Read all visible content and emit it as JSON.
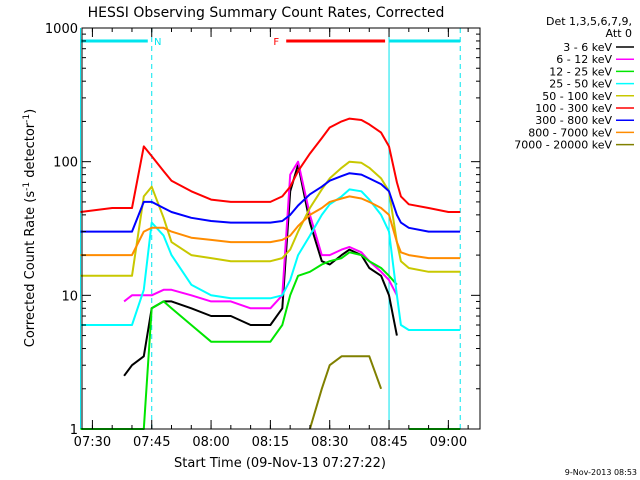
{
  "chart_data": {
    "type": "line",
    "title": "HESSI Observing Summary Count Rates, Corrected",
    "xlabel": "Start Time (09-Nov-13 07:27:22)",
    "ylabel": "Corrected Count Rate (s",
    "ylabel_sup1": "-1",
    "ylabel_mid": " detector",
    "ylabel_sup2": "-1",
    "ylabel_end": ")",
    "y_scale": "log",
    "ylim": [
      1,
      1000
    ],
    "xlim": [
      "07:27:22",
      "09:08:00"
    ],
    "x_ticks": [
      "07:30",
      "07:45",
      "08:00",
      "08:15",
      "08:30",
      "08:45",
      "09:00"
    ],
    "y_ticks": [
      {
        "value": 1,
        "label": "1"
      },
      {
        "value": 10,
        "label": "10"
      },
      {
        "value": 100,
        "label": "100"
      },
      {
        "value": 1000,
        "label": "1000"
      }
    ],
    "legend_header": [
      "Det 1,3,5,6,7,9,",
      "Att 0"
    ],
    "legend_position": "right",
    "grid": false,
    "x": [
      "07:27",
      "07:35",
      "07:38",
      "07:40",
      "07:43",
      "07:45",
      "07:48",
      "07:50",
      "07:55",
      "08:00",
      "08:05",
      "08:10",
      "08:15",
      "08:18",
      "08:20",
      "08:22",
      "08:25",
      "08:28",
      "08:30",
      "08:33",
      "08:35",
      "08:38",
      "08:40",
      "08:43",
      "08:45",
      "08:47",
      "08:48",
      "08:50",
      "08:55",
      "09:00",
      "09:03"
    ],
    "series": [
      {
        "name": "3 - 6 keV",
        "color": "#000000",
        "values": [
          null,
          null,
          2.5,
          3,
          3.5,
          8,
          9,
          9,
          8,
          7,
          7,
          6,
          6,
          8,
          60,
          95,
          35,
          18,
          17,
          20,
          22,
          20,
          16,
          14,
          10,
          5,
          null,
          null,
          null,
          null,
          null
        ]
      },
      {
        "name": "6 - 12 keV",
        "color": "#ff00ff",
        "values": [
          null,
          null,
          9,
          10,
          10,
          10,
          11,
          11,
          10,
          9,
          9,
          8,
          8,
          10,
          80,
          100,
          40,
          20,
          20,
          22,
          23,
          21,
          18,
          15,
          13,
          10,
          null,
          null,
          null,
          null,
          null
        ]
      },
      {
        "name": "12 - 25 keV",
        "color": "#00e600",
        "values": [
          1,
          1,
          1,
          1,
          1,
          8,
          9,
          8,
          6,
          4.5,
          4.5,
          4.5,
          4.5,
          6,
          10,
          14,
          15,
          17,
          18,
          19,
          21,
          20,
          18,
          16,
          14,
          12,
          null,
          1,
          1,
          1,
          1
        ]
      },
      {
        "name": "25 - 50 keV",
        "color": "#00ffff",
        "values": [
          6,
          6,
          6,
          6,
          11,
          35,
          28,
          20,
          12,
          10,
          9.5,
          9.5,
          9.5,
          10,
          13,
          20,
          28,
          40,
          48,
          55,
          62,
          60,
          52,
          40,
          30,
          10,
          6,
          5.5,
          5.5,
          5.5,
          5.5
        ]
      },
      {
        "name": "50 - 100 keV",
        "color": "#c8c800",
        "values": [
          14,
          14,
          14,
          14,
          55,
          65,
          38,
          25,
          20,
          19,
          18,
          18,
          18,
          19,
          22,
          30,
          45,
          62,
          75,
          90,
          100,
          98,
          90,
          75,
          60,
          25,
          18,
          16,
          15,
          15,
          15
        ]
      },
      {
        "name": "100 - 300 keV",
        "color": "#ff0000",
        "values": [
          42,
          45,
          45,
          45,
          130,
          110,
          85,
          72,
          60,
          52,
          50,
          50,
          50,
          55,
          65,
          85,
          115,
          150,
          180,
          200,
          210,
          205,
          190,
          165,
          130,
          70,
          55,
          48,
          45,
          42,
          42
        ]
      },
      {
        "name": "300 - 800 keV",
        "color": "#0000ff",
        "values": [
          30,
          30,
          30,
          30,
          50,
          50,
          45,
          42,
          38,
          36,
          35,
          35,
          35,
          36,
          40,
          47,
          57,
          65,
          72,
          78,
          82,
          80,
          75,
          68,
          60,
          40,
          35,
          32,
          30,
          30,
          30
        ]
      },
      {
        "name": "800 - 7000 keV",
        "color": "#ff8c00",
        "values": [
          20,
          20,
          20,
          20,
          30,
          32,
          32,
          30,
          27,
          26,
          25,
          25,
          25,
          26,
          28,
          33,
          40,
          45,
          50,
          53,
          55,
          53,
          50,
          45,
          40,
          25,
          21,
          20,
          19,
          19,
          19
        ]
      },
      {
        "name": "7000 - 20000 keV",
        "color": "#808000",
        "values": [
          null,
          null,
          null,
          null,
          null,
          null,
          null,
          null,
          null,
          null,
          null,
          null,
          null,
          null,
          null,
          null,
          1,
          2,
          3,
          3.5,
          3.5,
          3.5,
          3.5,
          2,
          null,
          null,
          null,
          null,
          null,
          null,
          null
        ]
      }
    ],
    "annotations": [
      {
        "label": "N",
        "color": "#00e5ee",
        "segments": [
          [
            "07:27",
            "07:44"
          ],
          [
            "08:45",
            "09:03"
          ]
        ],
        "level": 800
      },
      {
        "label": "F",
        "color": "#ff0000",
        "segments": [
          [
            "08:19",
            "08:44"
          ]
        ],
        "level": 800
      }
    ],
    "vertical_markers": {
      "color": "#00e5ee",
      "solid": [
        "07:27",
        "08:45"
      ],
      "dashed": [
        "07:45",
        "09:03"
      ]
    }
  },
  "timestamp": "9-Nov-2013 08:53"
}
